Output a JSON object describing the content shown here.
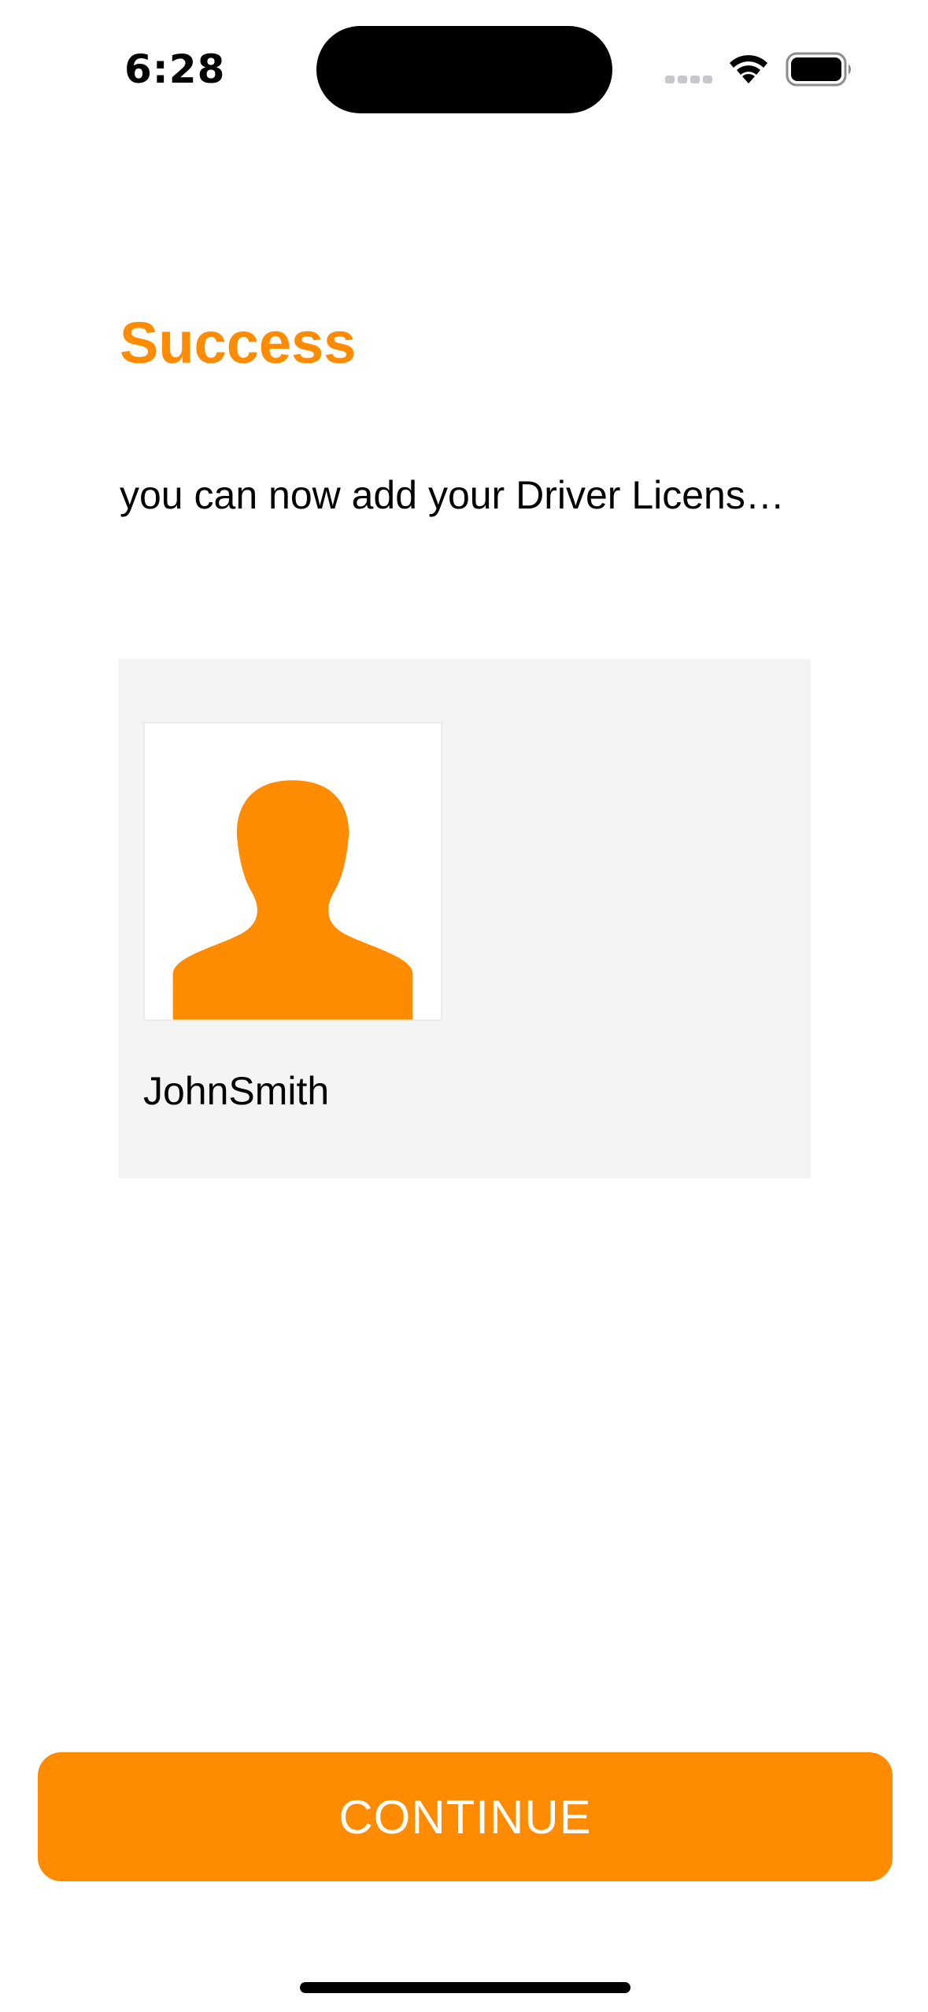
{
  "status_bar": {
    "time": "6:28",
    "icons": [
      "cellular-signal-icon",
      "wifi-icon",
      "battery-icon"
    ]
  },
  "screen": {
    "title": "Success",
    "message": "you can now add your Driver Licens…"
  },
  "profile_card": {
    "avatar_icon": "person-silhouette-icon",
    "name": "JohnSmith"
  },
  "continue_button": {
    "label": "CONTINUE"
  },
  "colors": {
    "accent": "#FF8B00",
    "card_background": "#F4F4F5",
    "background": "#FFFFFF",
    "text": "#000000"
  }
}
